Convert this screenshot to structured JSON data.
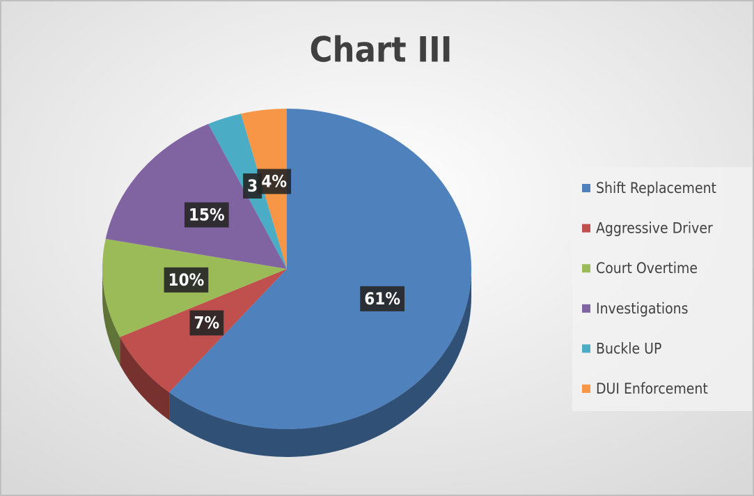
{
  "chart_data": {
    "type": "pie",
    "title": "Chart III",
    "categories": [
      "Shift Replacement",
      "Aggressive Driver",
      "Court Overtime",
      "Investigations",
      "Buckle UP",
      "DUI Enforcement"
    ],
    "values": [
      61,
      7,
      10,
      15,
      3,
      4
    ],
    "value_labels": [
      "61%",
      "7%",
      "10%",
      "15%",
      "3",
      "4%"
    ],
    "colors": [
      "#4f81bd",
      "#c0504d",
      "#9bbb59",
      "#8064a2",
      "#4bacc6",
      "#f79646"
    ],
    "legend": "right"
  }
}
